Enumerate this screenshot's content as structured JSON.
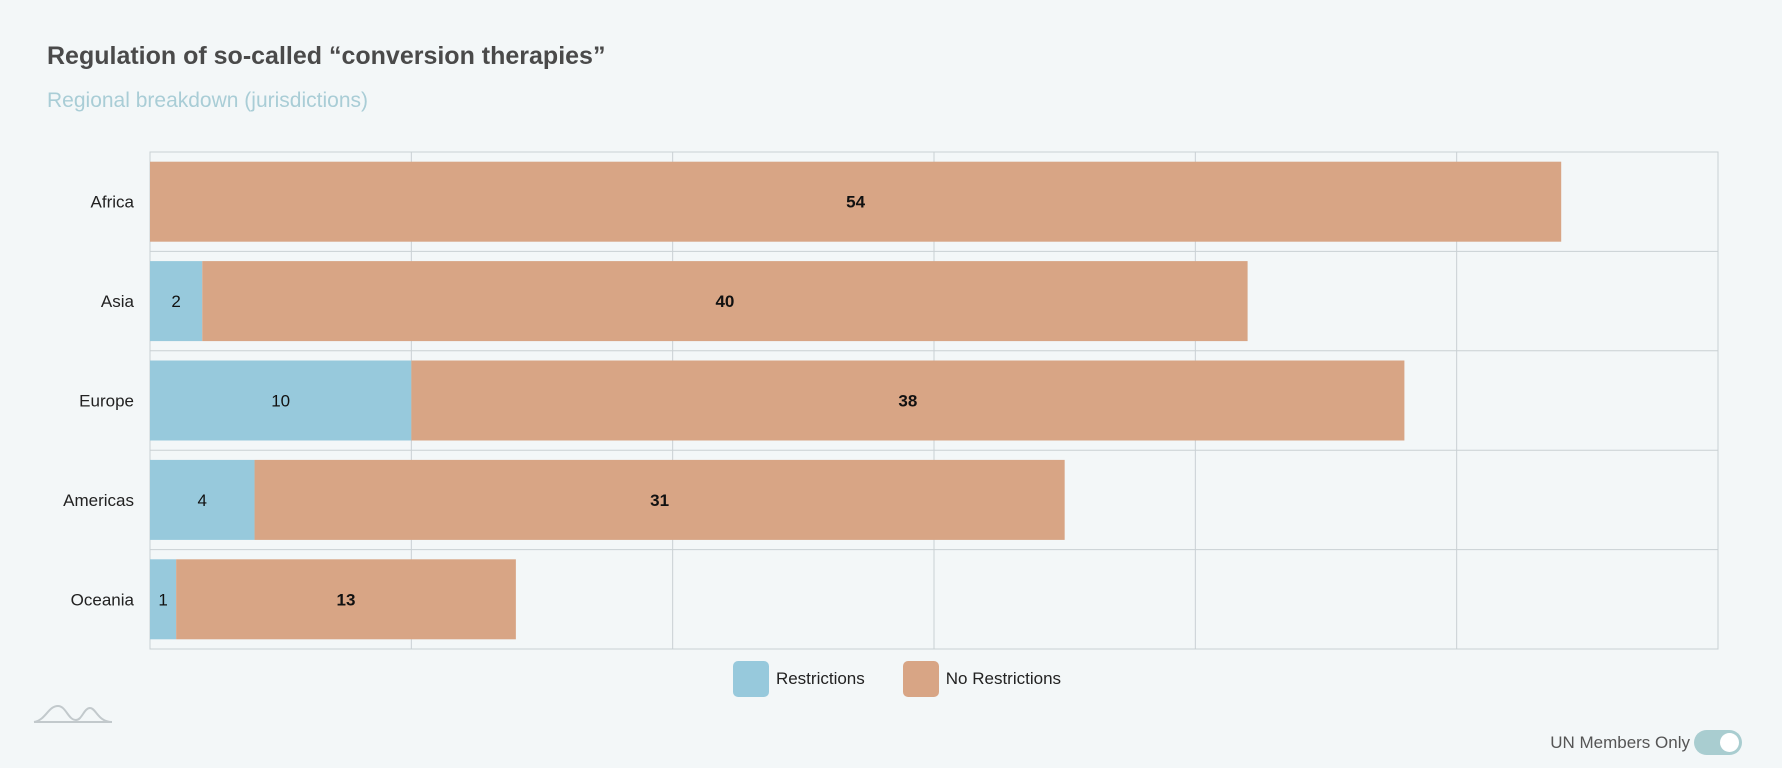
{
  "header": {
    "title": "Regulation of so-called “conversion therapies”",
    "subtitle": "Regional breakdown (jurisdictions)"
  },
  "chart_data": {
    "type": "bar",
    "orientation": "horizontal",
    "stacked": true,
    "categories": [
      "Africa",
      "Asia",
      "Europe",
      "Americas",
      "Oceania"
    ],
    "series": [
      {
        "name": "Restrictions",
        "color": "#97c9dc",
        "values": [
          0,
          2,
          10,
          4,
          1
        ]
      },
      {
        "name": "No Restrictions",
        "color": "#d8a585",
        "values": [
          54,
          40,
          38,
          31,
          13
        ]
      }
    ],
    "xlim": [
      0,
      60
    ],
    "grid": true,
    "legend_position": "bottom-center"
  },
  "legend": {
    "items": [
      {
        "label": "Restrictions",
        "color": "#97c9dc"
      },
      {
        "label": "No Restrictions",
        "color": "#d8a585"
      }
    ]
  },
  "controls": {
    "toggle_label": "UN Members Only",
    "toggle_on": true
  },
  "logo": {
    "icon": "wave-logo-icon"
  }
}
